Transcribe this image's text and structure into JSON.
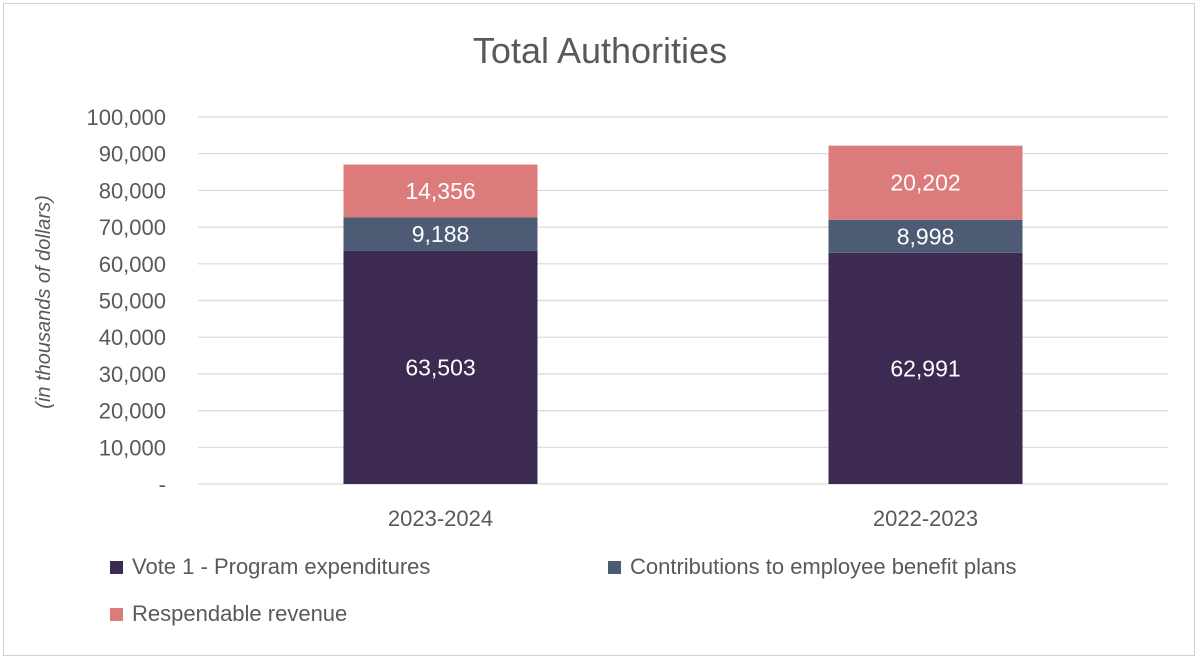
{
  "chart_data": {
    "type": "bar",
    "stacked": true,
    "title": "Total Authorities",
    "xlabel": "",
    "ylabel": "(in thousands of dollars)",
    "categories": [
      "2023-2024",
      "2022-2023"
    ],
    "series": [
      {
        "name": "Vote 1 - Program expenditures",
        "values": [
          63503,
          62991
        ],
        "labels": [
          "63,503",
          "62,991"
        ],
        "color": "#3d2a52"
      },
      {
        "name": "Contributions to employee benefit plans",
        "values": [
          9188,
          8998
        ],
        "labels": [
          "9,188",
          "8,998"
        ],
        "color": "#4d5b75"
      },
      {
        "name": "Respendable revenue",
        "values": [
          14356,
          20202
        ],
        "labels": [
          "14,356",
          "20,202"
        ],
        "color": "#dc7b7b"
      }
    ],
    "ylim": [
      0,
      100000
    ],
    "yticks": [
      0,
      10000,
      20000,
      30000,
      40000,
      50000,
      60000,
      70000,
      80000,
      90000,
      100000
    ],
    "ytick_labels": [
      "-",
      "10,000",
      "20,000",
      "30,000",
      "40,000",
      "50,000",
      "60,000",
      "70,000",
      "80,000",
      "90,000",
      "100,000"
    ],
    "grid": true,
    "legend_position": "bottom"
  }
}
